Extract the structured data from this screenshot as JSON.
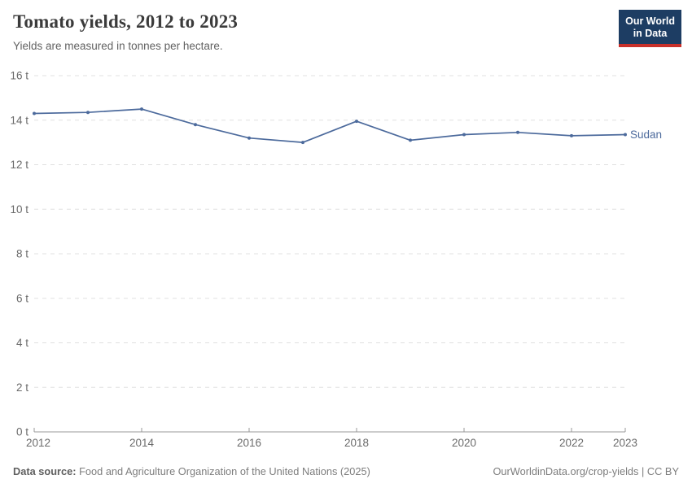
{
  "header": {
    "title": "Tomato yields, 2012 to 2023",
    "subtitle": "Yields are measured in tonnes per hectare.",
    "logo": {
      "line1": "Our World",
      "line2": "in Data"
    }
  },
  "chart_data": {
    "type": "line",
    "title": "Tomato yields, 2012 to 2023",
    "subtitle": "Yields are measured in tonnes per hectare.",
    "unit": "tonnes per hectare",
    "x": [
      2012,
      2013,
      2014,
      2015,
      2016,
      2017,
      2018,
      2019,
      2020,
      2021,
      2022,
      2023
    ],
    "series": [
      {
        "name": "Sudan",
        "color": "#4c6a9c",
        "values": [
          14.3,
          14.35,
          14.5,
          13.8,
          13.2,
          13.0,
          13.95,
          13.1,
          13.35,
          13.45,
          13.3,
          13.35
        ]
      }
    ],
    "xlim": [
      2012,
      2023
    ],
    "ylim": [
      0,
      16
    ],
    "y_ticks": [
      0,
      2,
      4,
      6,
      8,
      10,
      12,
      14,
      16
    ],
    "y_tick_suffix": " t",
    "x_ticks": [
      2012,
      2014,
      2016,
      2018,
      2020,
      2022,
      2023
    ],
    "grid": "horizontal-dashed",
    "legend_position": "right-of-line"
  },
  "footer": {
    "source_label": "Data source:",
    "source_text": "Food and Agriculture Organization of the United Nations (2025)",
    "credit": "OurWorldinData.org/crop-yields | CC BY"
  },
  "colors": {
    "line": "#4c6a9c",
    "series_label": "#4c6a9c",
    "gridline": "#e0e0e0",
    "axis_line": "#999999",
    "tick_label": "#6b6b6b",
    "title": "#3b3b3b",
    "subtitle": "#616161",
    "logo_bg": "#1d3d63",
    "logo_red": "#c8302a"
  }
}
